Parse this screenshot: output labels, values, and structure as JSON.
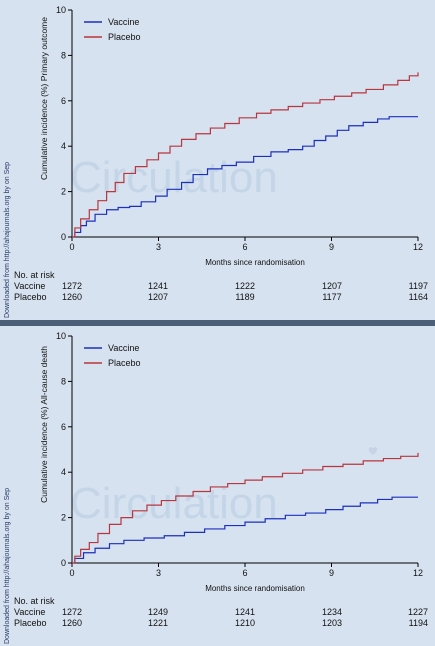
{
  "sidebar_text": "Downloaded from http://ahajournals.org by on Sep",
  "watermark": "Circulation",
  "chart_data": [
    {
      "type": "line",
      "step": true,
      "ylabel": "Cumulative incidence (%)  Primary outcome",
      "xlabel": "Months since randomisation",
      "xlim": [
        0,
        12
      ],
      "ylim": [
        0,
        10
      ],
      "xticks": [
        0,
        3,
        6,
        9,
        12
      ],
      "yticks": [
        0,
        2,
        4,
        6,
        8,
        10
      ],
      "legend_position": "top-left",
      "series": [
        {
          "name": "Vaccine",
          "color": "#1c2fbf",
          "points": [
            [
              0,
              0
            ],
            [
              0.1,
              0.2
            ],
            [
              0.3,
              0.5
            ],
            [
              0.5,
              0.7
            ],
            [
              0.8,
              1.0
            ],
            [
              1.2,
              1.2
            ],
            [
              1.6,
              1.3
            ],
            [
              2.0,
              1.35
            ],
            [
              2.4,
              1.55
            ],
            [
              2.9,
              1.8
            ],
            [
              3.3,
              2.1
            ],
            [
              3.8,
              2.4
            ],
            [
              4.2,
              2.75
            ],
            [
              4.7,
              3.0
            ],
            [
              5.2,
              3.15
            ],
            [
              5.7,
              3.3
            ],
            [
              6.3,
              3.55
            ],
            [
              6.9,
              3.75
            ],
            [
              7.5,
              3.85
            ],
            [
              8.0,
              4.0
            ],
            [
              8.4,
              4.25
            ],
            [
              8.8,
              4.45
            ],
            [
              9.2,
              4.7
            ],
            [
              9.6,
              4.9
            ],
            [
              10.1,
              5.05
            ],
            [
              10.6,
              5.2
            ],
            [
              11.0,
              5.3
            ],
            [
              12,
              5.3
            ]
          ]
        },
        {
          "name": "Placebo",
          "color": "#b8363f",
          "points": [
            [
              0,
              0
            ],
            [
              0.1,
              0.4
            ],
            [
              0.3,
              0.8
            ],
            [
              0.6,
              1.2
            ],
            [
              0.9,
              1.6
            ],
            [
              1.2,
              2.0
            ],
            [
              1.5,
              2.4
            ],
            [
              1.8,
              2.8
            ],
            [
              2.2,
              3.1
            ],
            [
              2.6,
              3.4
            ],
            [
              3.0,
              3.7
            ],
            [
              3.4,
              4.0
            ],
            [
              3.8,
              4.3
            ],
            [
              4.3,
              4.55
            ],
            [
              4.8,
              4.8
            ],
            [
              5.3,
              5.0
            ],
            [
              5.8,
              5.25
            ],
            [
              6.4,
              5.45
            ],
            [
              6.9,
              5.6
            ],
            [
              7.5,
              5.75
            ],
            [
              8.0,
              5.9
            ],
            [
              8.6,
              6.05
            ],
            [
              9.1,
              6.2
            ],
            [
              9.7,
              6.35
            ],
            [
              10.2,
              6.5
            ],
            [
              10.8,
              6.7
            ],
            [
              11.3,
              6.9
            ],
            [
              11.7,
              7.1
            ],
            [
              12,
              7.25
            ]
          ]
        }
      ],
      "risk_table": {
        "header": "No. at risk",
        "rows": [
          {
            "label": "Vaccine",
            "values": [
              "1272",
              "1241",
              "1222",
              "1207",
              "1197"
            ]
          },
          {
            "label": "Placebo",
            "values": [
              "1260",
              "1207",
              "1189",
              "1177",
              "1164"
            ]
          }
        ]
      }
    },
    {
      "type": "line",
      "step": true,
      "ylabel": "Cumulative incidence (%)  All-cause death",
      "xlabel": "Months since randomisation",
      "xlim": [
        0,
        12
      ],
      "ylim": [
        0,
        10
      ],
      "xticks": [
        0,
        3,
        6,
        9,
        12
      ],
      "yticks": [
        0,
        2,
        4,
        6,
        8,
        10
      ],
      "legend_position": "top-left",
      "series": [
        {
          "name": "Vaccine",
          "color": "#1c2fbf",
          "points": [
            [
              0,
              0
            ],
            [
              0.1,
              0.2
            ],
            [
              0.4,
              0.45
            ],
            [
              0.8,
              0.65
            ],
            [
              1.3,
              0.85
            ],
            [
              1.8,
              1.0
            ],
            [
              2.5,
              1.1
            ],
            [
              3.2,
              1.2
            ],
            [
              3.9,
              1.35
            ],
            [
              4.6,
              1.5
            ],
            [
              5.3,
              1.65
            ],
            [
              6.0,
              1.8
            ],
            [
              6.7,
              1.95
            ],
            [
              7.4,
              2.1
            ],
            [
              8.1,
              2.2
            ],
            [
              8.8,
              2.35
            ],
            [
              9.4,
              2.5
            ],
            [
              10.0,
              2.65
            ],
            [
              10.6,
              2.8
            ],
            [
              11.1,
              2.9
            ],
            [
              12,
              2.9
            ]
          ]
        },
        {
          "name": "Placebo",
          "color": "#b8363f",
          "points": [
            [
              0,
              0
            ],
            [
              0.1,
              0.3
            ],
            [
              0.3,
              0.6
            ],
            [
              0.6,
              0.9
            ],
            [
              0.9,
              1.3
            ],
            [
              1.3,
              1.7
            ],
            [
              1.7,
              2.0
            ],
            [
              2.1,
              2.3
            ],
            [
              2.6,
              2.55
            ],
            [
              3.1,
              2.75
            ],
            [
              3.6,
              2.95
            ],
            [
              4.2,
              3.15
            ],
            [
              4.8,
              3.35
            ],
            [
              5.4,
              3.5
            ],
            [
              6.0,
              3.65
            ],
            [
              6.6,
              3.8
            ],
            [
              7.3,
              3.95
            ],
            [
              8.0,
              4.1
            ],
            [
              8.7,
              4.25
            ],
            [
              9.4,
              4.35
            ],
            [
              10.1,
              4.5
            ],
            [
              10.8,
              4.6
            ],
            [
              11.4,
              4.7
            ],
            [
              12,
              4.85
            ]
          ]
        }
      ],
      "risk_table": {
        "header": "No. at risk",
        "rows": [
          {
            "label": "Vaccine",
            "values": [
              "1272",
              "1249",
              "1241",
              "1234",
              "1227"
            ]
          },
          {
            "label": "Placebo",
            "values": [
              "1260",
              "1221",
              "1210",
              "1203",
              "1194"
            ]
          }
        ]
      }
    }
  ]
}
